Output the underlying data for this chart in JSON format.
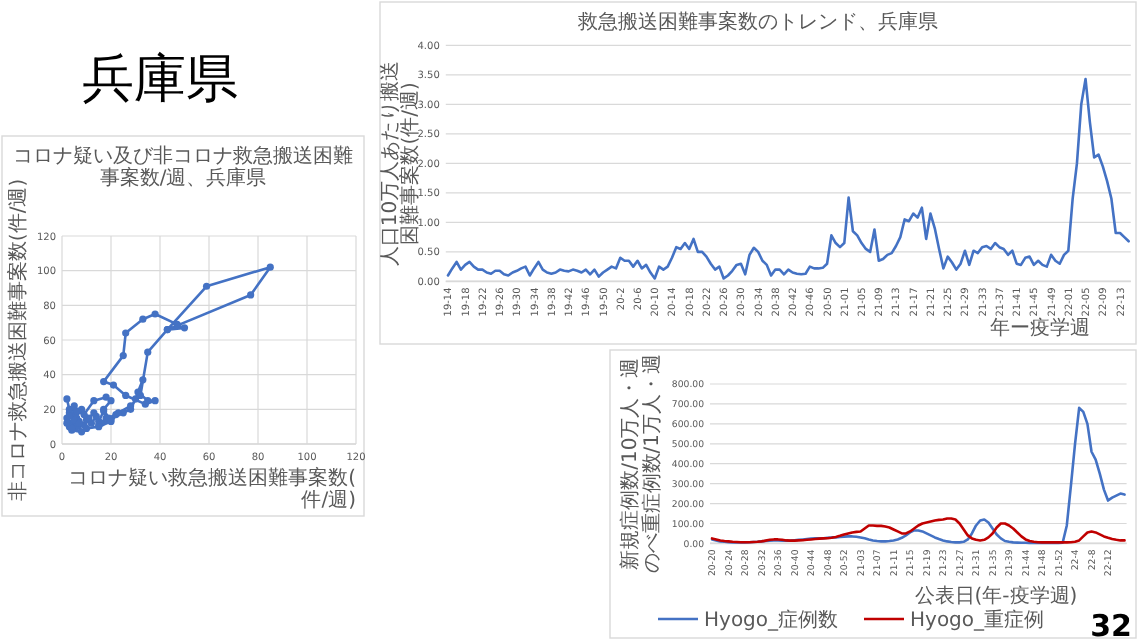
{
  "chart_data": [
    {
      "type": "other",
      "title": "兵庫県",
      "annotations": [
        "32"
      ]
    },
    {
      "type": "line",
      "title": "コロナ疑い及び非コロナ救急搬送困難事案数/週、兵庫県",
      "xlabel": "コロナ疑い救急搬送困難事案数(件/週)",
      "ylabel": "非コロナ救急搬送困難事案数(件/週)",
      "xlim": [
        0,
        120
      ],
      "ylim": [
        0,
        120
      ],
      "xticks": [
        0,
        20,
        40,
        60,
        80,
        100,
        120
      ],
      "yticks": [
        0,
        20,
        40,
        60,
        80,
        100,
        120
      ],
      "grid": true,
      "marker": "circle",
      "series": [
        {
          "color": "#4472c4",
          "x": [
            2,
            3,
            2,
            4,
            5,
            3,
            6,
            4,
            8,
            6,
            3,
            5,
            7,
            9,
            10,
            12,
            14,
            15,
            17,
            18,
            16,
            20,
            15,
            13,
            11,
            8,
            5,
            2,
            3,
            6,
            9,
            13,
            18,
            20,
            17,
            19,
            22,
            25,
            28,
            30,
            33,
            31,
            35,
            38,
            34,
            26,
            21,
            17,
            25,
            26,
            33,
            38,
            47,
            50,
            43,
            59,
            85,
            77,
            43,
            35,
            32,
            28,
            23,
            20,
            15,
            10,
            7,
            4
          ],
          "values": [
            26,
            20,
            15,
            12,
            22,
            18,
            10,
            8,
            7,
            15,
            10,
            17,
            13,
            11,
            14,
            12,
            16,
            13,
            19,
            15,
            12,
            14,
            11,
            18,
            15,
            20,
            14,
            12,
            16,
            19,
            17,
            25,
            27,
            25,
            20,
            15,
            17,
            18,
            20,
            26,
            37,
            30,
            25,
            25,
            23,
            28,
            34,
            36,
            51,
            64,
            72,
            75,
            69,
            67,
            66,
            91,
            102,
            86,
            66,
            53,
            28,
            22,
            18,
            13,
            10,
            9,
            12,
            9
          ]
        }
      ]
    },
    {
      "type": "line",
      "title": "救急搬送困難事案数のトレンド、兵庫県",
      "xlabel": "年ー疫学週",
      "ylabel": "人口10万人あたり搬送困難事案数(件/週)",
      "ylim": [
        0,
        4
      ],
      "yticks": [
        {
          "value": 0,
          "label": "0.00"
        },
        {
          "value": 0.5,
          "label": "0.50"
        },
        {
          "value": 1,
          "label": "1.00"
        },
        {
          "value": 1.5,
          "label": "1.50"
        },
        {
          "value": 2,
          "label": "2.00"
        },
        {
          "value": 2.5,
          "label": "2.50"
        },
        {
          "value": 3,
          "label": "3.00"
        },
        {
          "value": 3.5,
          "label": "3.50"
        },
        {
          "value": 4,
          "label": "4.00"
        }
      ],
      "grid": "y",
      "categories": [
        "19-14",
        null,
        null,
        null,
        "19-18",
        null,
        null,
        null,
        "19-22",
        null,
        null,
        null,
        "19-26",
        null,
        null,
        null,
        "19-30",
        null,
        null,
        null,
        "19-34",
        null,
        null,
        null,
        "19-38",
        null,
        null,
        null,
        "19-42",
        null,
        null,
        null,
        "19-46",
        null,
        null,
        null,
        "19-50",
        null,
        null,
        null,
        "20-2",
        null,
        null,
        null,
        "20-6",
        null,
        null,
        null,
        "20-10",
        null,
        null,
        null,
        "20-14",
        null,
        null,
        null,
        "20-18",
        null,
        null,
        null,
        "20-22",
        null,
        null,
        null,
        "20-26",
        null,
        null,
        null,
        "20-30",
        null,
        null,
        null,
        "20-34",
        null,
        null,
        null,
        "20-38",
        null,
        null,
        null,
        "20-42",
        null,
        null,
        null,
        "20-46",
        null,
        null,
        null,
        "20-50",
        null,
        null,
        null,
        "21-01",
        null,
        null,
        null,
        "21-05",
        null,
        null,
        null,
        "21-09",
        null,
        null,
        null,
        "21-13",
        null,
        null,
        null,
        "21-17",
        null,
        null,
        null,
        "21-21",
        null,
        null,
        null,
        "21-25",
        null,
        null,
        null,
        "21-29",
        null,
        null,
        null,
        "21-33",
        null,
        null,
        null,
        "21-37",
        null,
        null,
        null,
        "21-41",
        null,
        null,
        null,
        "21-45",
        null,
        null,
        null,
        "21-49",
        null,
        null,
        null,
        "22-01",
        null,
        null,
        null,
        "22-05",
        null,
        null,
        null,
        "22-09",
        null,
        null,
        null,
        "22-13",
        null,
        null
      ],
      "series": [
        {
          "color": "#4472c4",
          "values": [
            0.1,
            0.22,
            0.33,
            0.2,
            0.28,
            0.33,
            0.25,
            0.2,
            0.2,
            0.15,
            0.13,
            0.18,
            0.18,
            0.12,
            0.1,
            0.15,
            0.18,
            0.22,
            0.25,
            0.1,
            0.22,
            0.33,
            0.2,
            0.15,
            0.13,
            0.15,
            0.2,
            0.18,
            0.17,
            0.2,
            0.18,
            0.15,
            0.2,
            0.12,
            0.2,
            0.08,
            0.15,
            0.2,
            0.25,
            0.22,
            0.4,
            0.35,
            0.35,
            0.25,
            0.35,
            0.22,
            0.28,
            0.15,
            0.05,
            0.25,
            0.2,
            0.25,
            0.4,
            0.58,
            0.55,
            0.65,
            0.55,
            0.72,
            0.5,
            0.5,
            0.42,
            0.3,
            0.2,
            0.25,
            0.05,
            0.1,
            0.18,
            0.28,
            0.3,
            0.12,
            0.45,
            0.57,
            0.5,
            0.35,
            0.28,
            0.1,
            0.2,
            0.2,
            0.12,
            0.2,
            0.15,
            0.13,
            0.12,
            0.13,
            0.25,
            0.22,
            0.22,
            0.23,
            0.3,
            0.78,
            0.65,
            0.58,
            0.65,
            1.42,
            0.85,
            0.78,
            0.65,
            0.55,
            0.5,
            0.88,
            0.35,
            0.38,
            0.45,
            0.48,
            0.6,
            0.75,
            1.05,
            1.02,
            1.15,
            1.08,
            1.25,
            0.72,
            1.15,
            0.9,
            0.55,
            0.22,
            0.42,
            0.32,
            0.2,
            0.3,
            0.52,
            0.28,
            0.52,
            0.48,
            0.58,
            0.6,
            0.55,
            0.65,
            0.58,
            0.55,
            0.45,
            0.52,
            0.3,
            0.28,
            0.4,
            0.42,
            0.28,
            0.35,
            0.28,
            0.25,
            0.45,
            0.35,
            0.3,
            0.45,
            0.52,
            1.4,
            2.0,
            3.0,
            3.43,
            2.7,
            2.1,
            2.15,
            1.95,
            1.7,
            1.4,
            0.82,
            0.82,
            0.75,
            0.68
          ]
        }
      ]
    },
    {
      "type": "line",
      "xlabel": "公表日(年-疫学週)",
      "ylabel": "新規症例数/10万人・週のべ重症例数/1万人・週",
      "ylim": [
        0,
        800
      ],
      "yticks": [
        {
          "value": 0,
          "label": "0.00"
        },
        {
          "value": 100,
          "label": "100.00"
        },
        {
          "value": 200,
          "label": "200.00"
        },
        {
          "value": 300,
          "label": "300.00"
        },
        {
          "value": 400,
          "label": "400.00"
        },
        {
          "value": 500,
          "label": "500.00"
        },
        {
          "value": 600,
          "label": "600.00"
        },
        {
          "value": 700,
          "label": "700.00"
        },
        {
          "value": 800,
          "label": "800.00"
        }
      ],
      "grid": "y",
      "legend": "bottom",
      "categories": [
        "20-20",
        null,
        null,
        null,
        "20-24",
        null,
        null,
        null,
        "20-28",
        null,
        null,
        null,
        "20-32",
        null,
        null,
        null,
        "20-36",
        null,
        null,
        null,
        "20-40",
        null,
        null,
        null,
        "20-44",
        null,
        null,
        null,
        "20-48",
        null,
        null,
        null,
        "20-52",
        null,
        null,
        null,
        "21-03",
        null,
        null,
        null,
        "21-07",
        null,
        null,
        null,
        "21-11",
        null,
        null,
        null,
        "21-15",
        null,
        null,
        null,
        "21-19",
        null,
        null,
        null,
        "21-23",
        null,
        null,
        null,
        "21-27",
        null,
        null,
        null,
        "21-31",
        null,
        null,
        null,
        "21-35",
        null,
        null,
        null,
        "21-39",
        null,
        null,
        null,
        "21-44",
        null,
        null,
        null,
        "21-48",
        null,
        null,
        null,
        "21-52",
        null,
        null,
        null,
        "22-4",
        null,
        null,
        null,
        "22-8",
        null,
        null,
        null,
        "22-12",
        null,
        null,
        null,
        null
      ],
      "series": [
        {
          "name": "Hyogo_症例数",
          "color": "#4472c4",
          "values": [
            20,
            15,
            10,
            8,
            6,
            5,
            5,
            5,
            5,
            6,
            7,
            8,
            10,
            12,
            14,
            15,
            15,
            14,
            13,
            14,
            16,
            18,
            20,
            22,
            24,
            25,
            25,
            26,
            28,
            30,
            30,
            32,
            34,
            35,
            35,
            33,
            30,
            26,
            20,
            15,
            12,
            10,
            10,
            12,
            15,
            20,
            28,
            40,
            55,
            65,
            65,
            60,
            50,
            40,
            30,
            22,
            15,
            10,
            7,
            5,
            5,
            8,
            20,
            50,
            90,
            115,
            120,
            105,
            75,
            45,
            25,
            12,
            8,
            5,
            4,
            3,
            3,
            2,
            2,
            2,
            2,
            2,
            2,
            2,
            2,
            3,
            90,
            290,
            500,
            680,
            660,
            600,
            460,
            420,
            350,
            270,
            215,
            230,
            240,
            250,
            245
          ]
        },
        {
          "name": "Hyogo_重症例",
          "color": "#c00000",
          "values": [
            25,
            20,
            15,
            12,
            10,
            8,
            7,
            6,
            6,
            6,
            7,
            8,
            10,
            14,
            18,
            20,
            20,
            18,
            15,
            14,
            14,
            15,
            16,
            18,
            20,
            22,
            24,
            25,
            26,
            28,
            32,
            38,
            45,
            50,
            55,
            58,
            60,
            75,
            90,
            90,
            88,
            88,
            85,
            80,
            70,
            60,
            50,
            50,
            60,
            75,
            90,
            100,
            105,
            110,
            115,
            118,
            120,
            125,
            125,
            120,
            100,
            70,
            40,
            25,
            18,
            15,
            18,
            30,
            50,
            80,
            100,
            100,
            90,
            75,
            55,
            35,
            20,
            12,
            8,
            6,
            5,
            5,
            5,
            5,
            5,
            5,
            5,
            6,
            8,
            15,
            35,
            55,
            60,
            55,
            45,
            35,
            28,
            22,
            18,
            15,
            15
          ]
        }
      ]
    }
  ]
}
